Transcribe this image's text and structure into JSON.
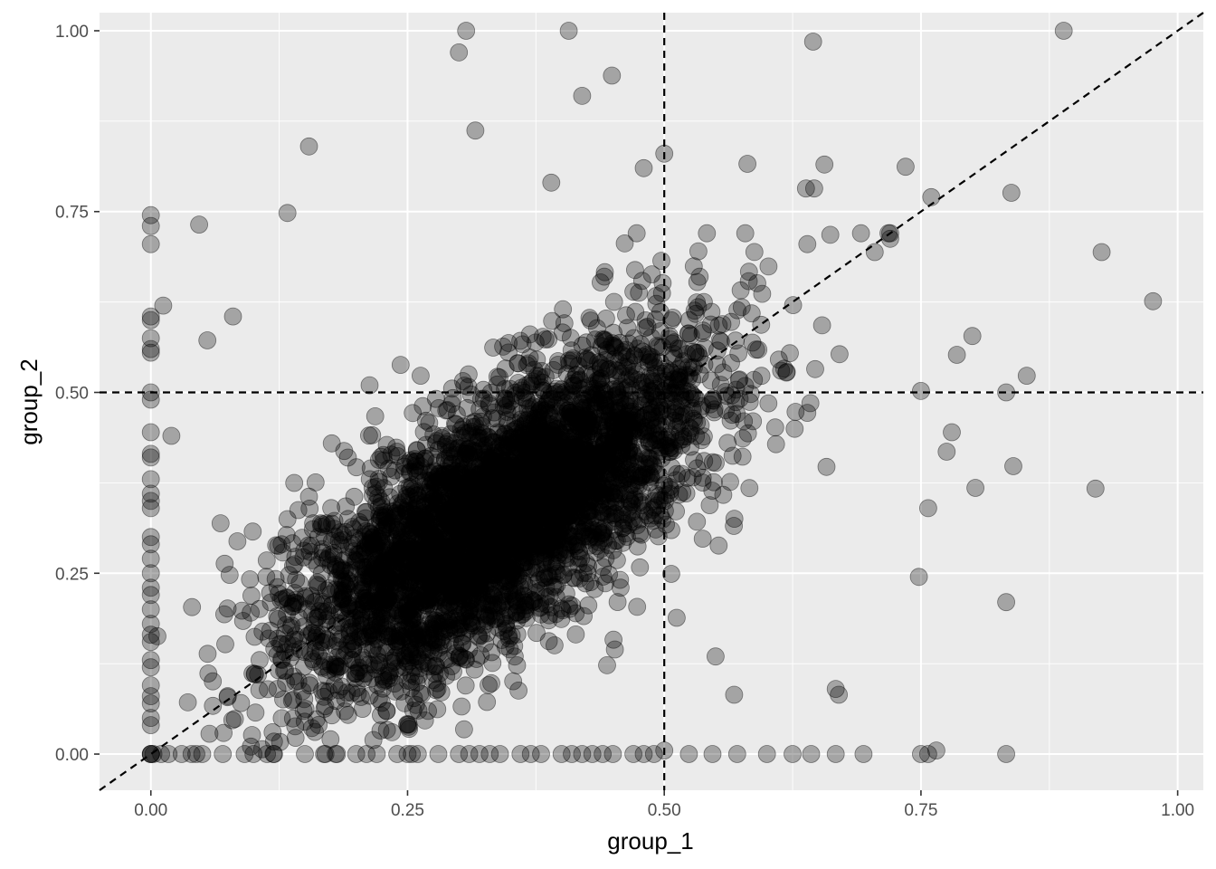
{
  "chart_data": {
    "type": "scatter",
    "title": "",
    "xlabel": "group_1",
    "ylabel": "group_2",
    "xlim": [
      -0.05,
      1.025
    ],
    "ylim": [
      -0.05,
      1.025
    ],
    "x_ticks": [
      0.0,
      0.25,
      0.5,
      0.75,
      1.0
    ],
    "x_tick_labels": [
      "0.00",
      "0.25",
      "0.50",
      "0.75",
      "1.00"
    ],
    "y_ticks": [
      0.0,
      0.25,
      0.5,
      0.75,
      1.0
    ],
    "y_tick_labels": [
      "0.00",
      "0.25",
      "0.50",
      "0.75",
      "1.00"
    ],
    "grid": true,
    "point_alpha": 0.3,
    "point_color": "#000000",
    "panel_background": "#ebebeb",
    "reference_lines": {
      "vline_x": 0.5,
      "hline_y": 0.5,
      "diagonal": "y = x"
    },
    "cluster": {
      "n_points": 4200,
      "center": [
        0.34,
        0.33
      ],
      "x_sd": 0.1,
      "slope": 0.82,
      "residual_sd": 0.085
    },
    "notable_points": [
      {
        "x": 0.3,
        "y": 0.97
      },
      {
        "x": 0.307,
        "y": 1.0
      },
      {
        "x": 0.407,
        "y": 1.0
      },
      {
        "x": 0.889,
        "y": 1.0
      },
      {
        "x": 0.645,
        "y": 0.985
      },
      {
        "x": 0.449,
        "y": 0.938
      },
      {
        "x": 0.42,
        "y": 0.91
      },
      {
        "x": 0.316,
        "y": 0.862
      },
      {
        "x": 0.154,
        "y": 0.84
      },
      {
        "x": 0.5,
        "y": 0.83
      },
      {
        "x": 0.581,
        "y": 0.816
      },
      {
        "x": 0.656,
        "y": 0.815
      },
      {
        "x": 0.735,
        "y": 0.812
      },
      {
        "x": 0.48,
        "y": 0.81
      },
      {
        "x": 0.39,
        "y": 0.79
      },
      {
        "x": 0.638,
        "y": 0.782
      },
      {
        "x": 0.646,
        "y": 0.782
      },
      {
        "x": 0.838,
        "y": 0.776
      },
      {
        "x": 0.76,
        "y": 0.77
      },
      {
        "x": 0.133,
        "y": 0.748
      },
      {
        "x": 0.047,
        "y": 0.732
      },
      {
        "x": 0.926,
        "y": 0.694
      },
      {
        "x": 0.705,
        "y": 0.694
      },
      {
        "x": 0.976,
        "y": 0.626
      },
      {
        "x": 0.8,
        "y": 0.578
      },
      {
        "x": 0.785,
        "y": 0.552
      },
      {
        "x": 0.853,
        "y": 0.523
      },
      {
        "x": 0.75,
        "y": 0.502
      },
      {
        "x": 0.833,
        "y": 0.5
      },
      {
        "x": 0.78,
        "y": 0.445
      },
      {
        "x": 0.775,
        "y": 0.418
      },
      {
        "x": 0.84,
        "y": 0.398
      },
      {
        "x": 0.803,
        "y": 0.368
      },
      {
        "x": 0.92,
        "y": 0.367
      },
      {
        "x": 0.757,
        "y": 0.34
      },
      {
        "x": 0.748,
        "y": 0.245
      },
      {
        "x": 0.833,
        "y": 0.21
      },
      {
        "x": 0.67,
        "y": 0.082
      },
      {
        "x": 0.667,
        "y": 0.09
      },
      {
        "x": 0.568,
        "y": 0.082
      },
      {
        "x": 0.55,
        "y": 0.135
      },
      {
        "x": 0.02,
        "y": 0.44
      },
      {
        "x": 0.012,
        "y": 0.62
      },
      {
        "x": 0.08,
        "y": 0.605
      },
      {
        "x": 0.055,
        "y": 0.572
      },
      {
        "x": 0.5,
        "y": 0.005
      },
      {
        "x": 0.524,
        "y": 0.0
      },
      {
        "x": 0.547,
        "y": 0.0
      },
      {
        "x": 0.571,
        "y": 0.0
      },
      {
        "x": 0.6,
        "y": 0.0
      },
      {
        "x": 0.625,
        "y": 0.0
      },
      {
        "x": 0.643,
        "y": 0.0
      },
      {
        "x": 0.667,
        "y": 0.0
      },
      {
        "x": 0.694,
        "y": 0.0
      },
      {
        "x": 0.75,
        "y": 0.0
      },
      {
        "x": 0.757,
        "y": 0.0
      },
      {
        "x": 0.765,
        "y": 0.005
      },
      {
        "x": 0.833,
        "y": 0.0
      }
    ],
    "zero_column_y_values": [
      0.745,
      0.73,
      0.705,
      0.605,
      0.6,
      0.575,
      0.56,
      0.555,
      0.5,
      0.49,
      0.445,
      0.415,
      0.41,
      0.38,
      0.36,
      0.35,
      0.34,
      0.3,
      0.29,
      0.27,
      0.25,
      0.23,
      0.22,
      0.2,
      0.18,
      0.165,
      0.155,
      0.13,
      0.12,
      0.095,
      0.08,
      0.07,
      0.05,
      0.04,
      0.0
    ],
    "zero_row_x_values": [
      0.0,
      0.01,
      0.03,
      0.05,
      0.07,
      0.1,
      0.12,
      0.15,
      0.17,
      0.18,
      0.2,
      0.21,
      0.22,
      0.24,
      0.25,
      0.26,
      0.28,
      0.3,
      0.31,
      0.32,
      0.33,
      0.34,
      0.36,
      0.37,
      0.38,
      0.4,
      0.41,
      0.42,
      0.43,
      0.44,
      0.45,
      0.47,
      0.48,
      0.49
    ]
  }
}
